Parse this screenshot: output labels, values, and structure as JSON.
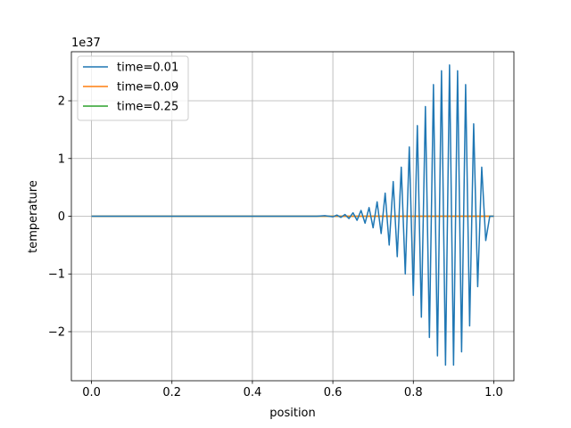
{
  "chart_data": {
    "type": "line",
    "title": "",
    "xlabel": "position",
    "ylabel": "temperature",
    "y_offset_label": "1e37",
    "y_scale_note": "values in units of 1e37",
    "xlim": [
      -0.05,
      1.05
    ],
    "ylim": [
      -2.85,
      2.85
    ],
    "grid": true,
    "legend_position": "upper-left",
    "x_ticks": [
      0.0,
      0.2,
      0.4,
      0.6,
      0.8,
      1.0
    ],
    "x_tick_labels": [
      "0.0",
      "0.2",
      "0.4",
      "0.6",
      "0.8",
      "1.0"
    ],
    "y_ticks": [
      -2,
      -1,
      0,
      1,
      2
    ],
    "y_tick_labels": [
      "−2",
      "−1",
      "0",
      "1",
      "2"
    ],
    "series": [
      {
        "name": "time=0.01",
        "color": "#1f77b4",
        "x": [
          0.0,
          0.56,
          0.58,
          0.6,
          0.61,
          0.62,
          0.63,
          0.64,
          0.65,
          0.66,
          0.67,
          0.68,
          0.69,
          0.7,
          0.71,
          0.72,
          0.73,
          0.74,
          0.75,
          0.76,
          0.77,
          0.78,
          0.79,
          0.8,
          0.81,
          0.82,
          0.83,
          0.84,
          0.85,
          0.86,
          0.87,
          0.88,
          0.89,
          0.9,
          0.91,
          0.92,
          0.93,
          0.94,
          0.95,
          0.96,
          0.97,
          0.98,
          0.99,
          1.0
        ],
        "y": [
          0.0,
          0.0,
          0.01,
          -0.01,
          0.02,
          -0.02,
          0.03,
          -0.04,
          0.06,
          -0.07,
          0.1,
          -0.12,
          0.15,
          -0.2,
          0.25,
          -0.3,
          0.4,
          -0.5,
          0.6,
          -0.7,
          0.85,
          -1.0,
          1.2,
          -1.37,
          1.57,
          -1.75,
          1.9,
          -2.1,
          2.28,
          -2.42,
          2.52,
          -2.58,
          2.62,
          -2.58,
          2.52,
          -2.35,
          2.28,
          -1.9,
          1.6,
          -1.22,
          0.85,
          -0.42,
          0.0,
          0.0
        ]
      },
      {
        "name": "time=0.09",
        "color": "#ff7f0e",
        "x": [
          0.0,
          1.0
        ],
        "y": [
          0.0,
          0.0
        ]
      },
      {
        "name": "time=0.25",
        "color": "#2ca02c",
        "x": [
          0.0,
          1.0
        ],
        "y": [
          0.0,
          0.0
        ]
      }
    ]
  }
}
